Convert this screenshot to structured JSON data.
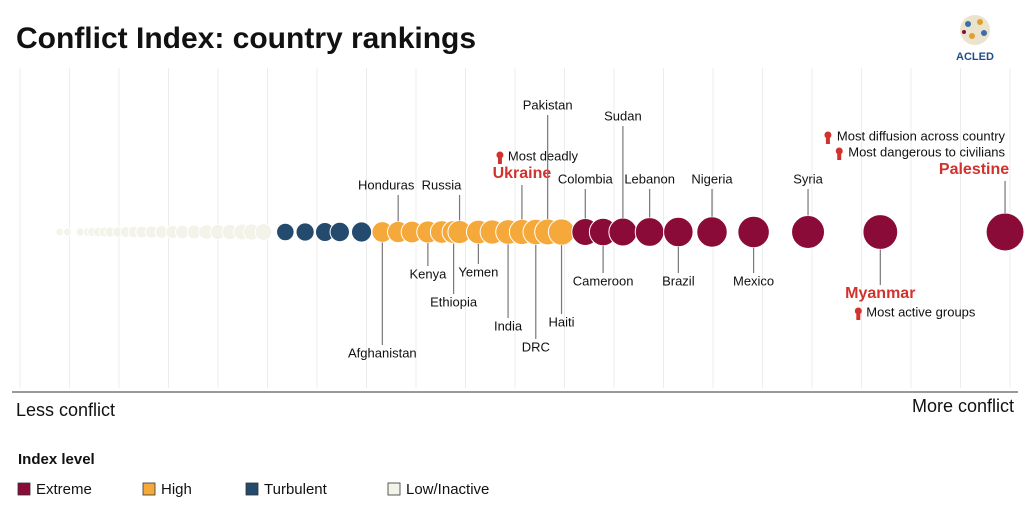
{
  "chart_data": {
    "type": "beeswarm",
    "title": "Conflict Index: country rankings",
    "logo": "ACLED",
    "x_label_left": "Less conflict",
    "x_label_right": "More conflict",
    "xlim": [
      0,
      100
    ],
    "xticks": [
      0,
      5,
      10,
      15,
      20,
      25,
      30,
      35,
      40,
      45,
      50,
      55,
      60,
      65,
      70,
      75,
      80,
      85,
      90,
      95,
      100
    ],
    "grid": true,
    "legend_title": "Index level",
    "legend": "bottom-left",
    "series": [
      {
        "name": "Extreme",
        "color": "#8a0b38",
        "values": [
          57.1,
          58.9,
          60.9,
          63.6,
          66.5,
          69.9,
          74.1,
          79.6,
          86.9,
          99.5
        ],
        "labels": [
          "Colombia",
          "Cameroon",
          "Sudan",
          "Lebanon",
          "Brazil",
          "Nigeria",
          "Mexico",
          "Syria",
          "Myanmar",
          "Palestine"
        ]
      },
      {
        "name": "High",
        "color": "#f5a93a",
        "values": [
          36.6,
          38.2,
          39.6,
          41.2,
          42.6,
          43.8,
          44.4,
          46.3,
          47.7,
          49.3,
          50.7,
          52.1,
          53.3,
          54.7
        ],
        "labels": [
          "Afghanistan",
          "Honduras",
          null,
          "Kenya",
          null,
          "Ethiopia",
          "Russia",
          "Yemen",
          null,
          "India",
          "Ukraine",
          "DRC",
          "Pakistan",
          "Haiti"
        ]
      },
      {
        "name": "Turbulent",
        "color": "#244a6e",
        "values": [
          26.8,
          28.8,
          30.8,
          32.3,
          34.5
        ],
        "labels": [
          null,
          null,
          null,
          null,
          null
        ]
      },
      {
        "name": "Low/Inactive",
        "color": "#f3f3ea",
        "values": [
          4.0,
          4.8,
          6.1,
          6.9,
          7.3,
          7.9,
          8.5,
          9.1,
          9.9,
          10.7,
          11.5,
          12.3,
          13.3,
          14.3,
          15.4,
          16.4,
          17.6,
          18.8,
          20.0,
          21.2,
          22.4,
          23.4,
          24.6
        ],
        "labels": [
          null,
          null,
          null,
          null,
          null,
          null,
          null,
          null,
          null,
          null,
          null,
          null,
          null,
          null,
          null,
          null,
          null,
          null,
          null,
          null,
          null,
          null,
          null
        ]
      }
    ],
    "annotations": [
      {
        "country": "Ukraine",
        "texts": [
          "Most deadly"
        ]
      },
      {
        "country": "Palestine",
        "texts": [
          "Most diffusion across country",
          "Most dangerous to civilians"
        ]
      },
      {
        "country": "Myanmar",
        "texts": [
          "Most active groups"
        ]
      }
    ]
  }
}
